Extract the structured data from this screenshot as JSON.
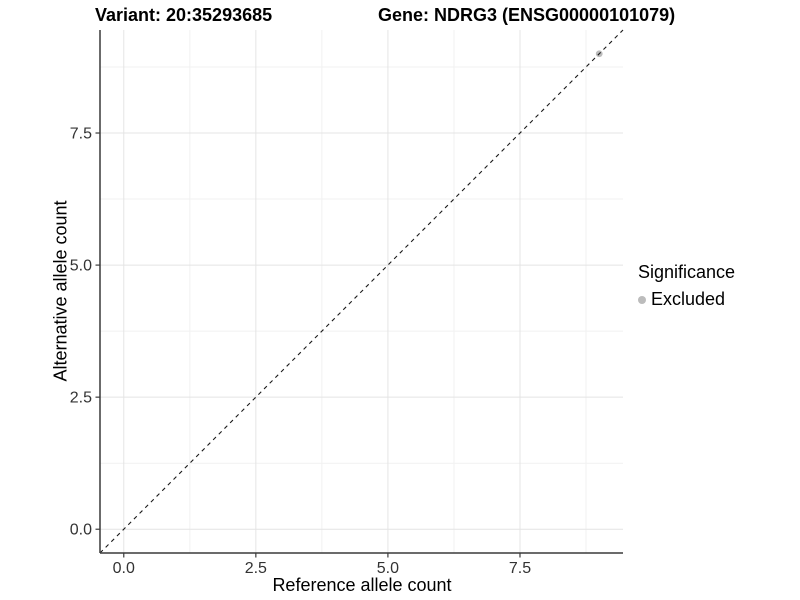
{
  "header": {
    "variant_title": "Variant: 20:35293685",
    "gene_title": "Gene: NDRG3 (ENSG00000101079)"
  },
  "chart_data": {
    "type": "scatter",
    "title": "",
    "xlabel": "Reference allele count",
    "ylabel": "Alternative allele count",
    "xlim": [
      -0.45,
      9.45
    ],
    "ylim": [
      -0.45,
      9.45
    ],
    "x_ticks": [
      0.0,
      2.5,
      5.0,
      7.5
    ],
    "y_ticks": [
      0.0,
      2.5,
      5.0,
      7.5
    ],
    "x_minor_ticks": [
      1.25,
      3.75,
      6.25,
      8.75
    ],
    "y_minor_ticks": [
      1.25,
      3.75,
      6.25,
      8.75
    ],
    "tick_label_format_decimals": 1,
    "grid": true,
    "points": [
      {
        "x": 9,
        "y": 9,
        "series": "Excluded"
      }
    ],
    "identity_line": {
      "slope": 1,
      "intercept": 0,
      "style": "dashed"
    },
    "series": [
      {
        "name": "Excluded",
        "color": "#bcbcbc"
      }
    ],
    "legend": {
      "title": "Significance",
      "position": "right",
      "entries": [
        {
          "label": "Excluded",
          "color": "#bcbcbc"
        }
      ]
    }
  },
  "colors": {
    "background": "#ffffff",
    "grid_major": "#e4e4e4",
    "grid_minor": "#f1f1f1",
    "axis_line": "#3a3a3a",
    "tick_label": "#333333",
    "dashed_line": "#1a1a1a",
    "point": "#bcbcbc"
  }
}
